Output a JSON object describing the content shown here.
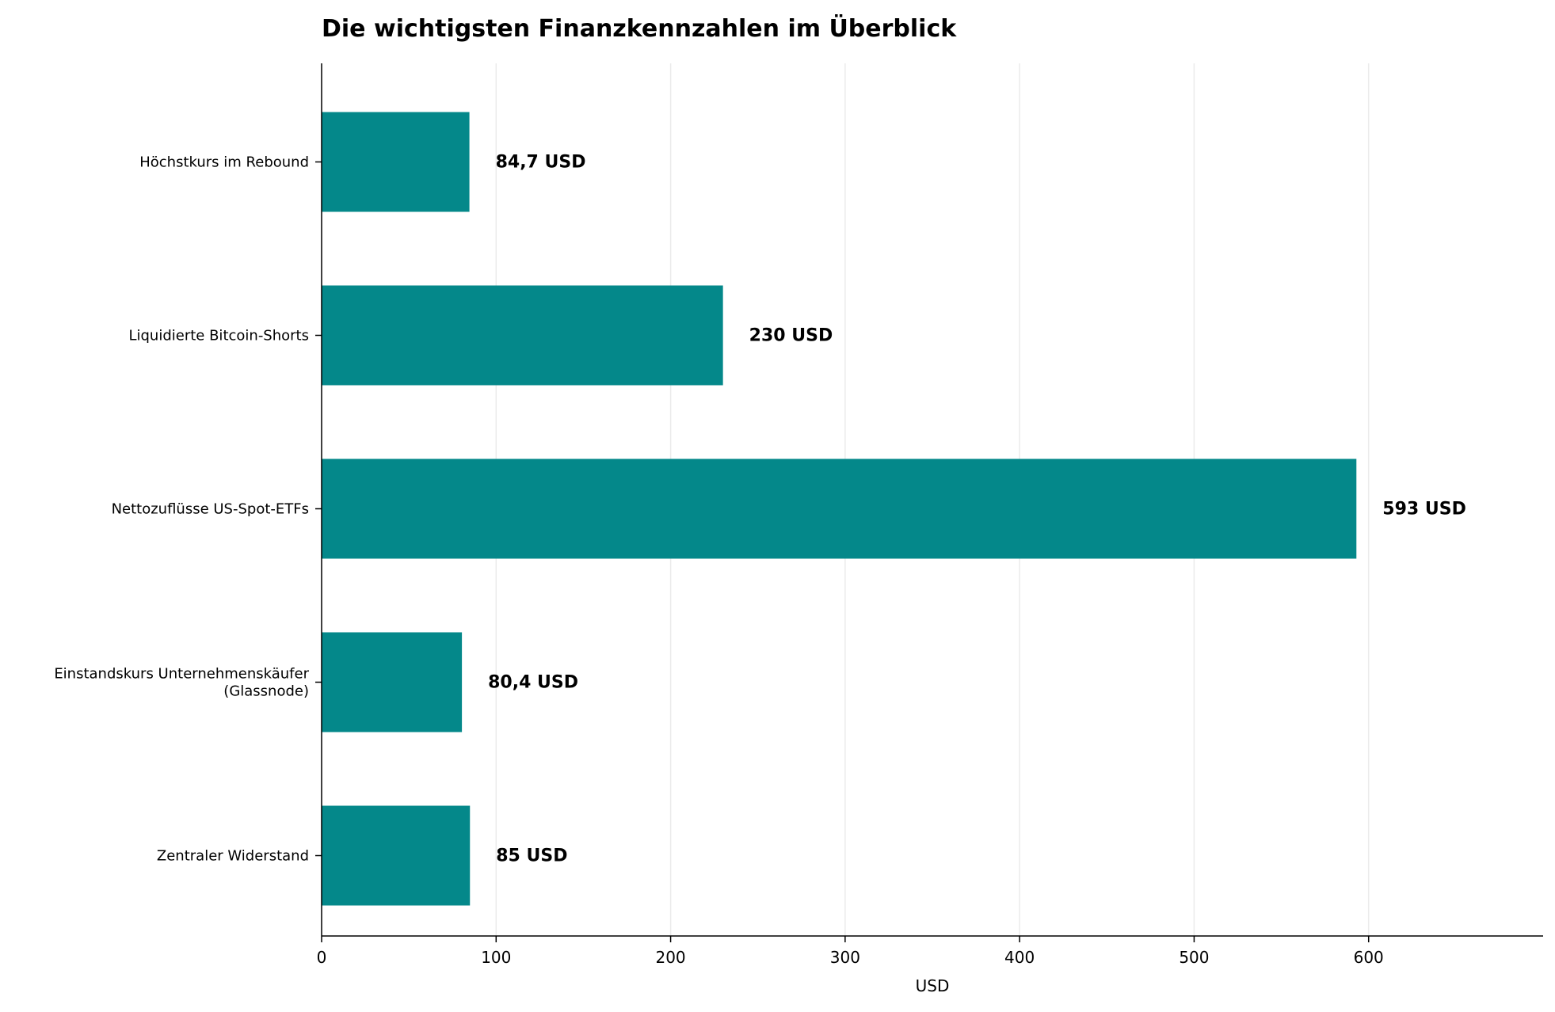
{
  "chart_data": {
    "type": "bar",
    "orientation": "horizontal",
    "title": "Die wichtigsten Finanzkennzahlen im Überblick",
    "xlabel": "USD",
    "ylabel": "",
    "xlim": [
      0,
      700
    ],
    "x_ticks": [
      0,
      100,
      200,
      300,
      400,
      500,
      600
    ],
    "grid": "vertical",
    "categories": [
      [
        "Höchstkurs im Rebound"
      ],
      [
        "Liquidierte Bitcoin-Shorts"
      ],
      [
        "Nettozuflüsse US-Spot-ETFs"
      ],
      [
        "Einstandskurs Unternehmenskäufer",
        "(Glassnode)"
      ],
      [
        "Zentraler Widerstand"
      ]
    ],
    "values": [
      84.7,
      230,
      593,
      80.4,
      85
    ],
    "value_labels": [
      "84,7 USD",
      "230 USD",
      "593 USD",
      "80,4 USD",
      "85 USD"
    ],
    "bar_color": "#04888a",
    "grid_color": "#ebebeb"
  }
}
